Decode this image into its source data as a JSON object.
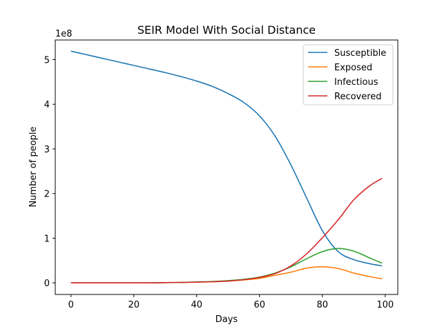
{
  "chart_data": {
    "type": "line",
    "title": "SEIR Model With Social Distance",
    "xlabel": "Days",
    "ylabel": "Number of people",
    "y_offset_label": "1e8",
    "y_scale": 100000000,
    "xlim": [
      -5,
      104
    ],
    "ylim": [
      -0.26,
      5.44
    ],
    "x_ticks": [
      0,
      20,
      40,
      60,
      80,
      100
    ],
    "y_ticks": [
      0,
      1,
      2,
      3,
      4,
      5
    ],
    "legend_position": "top-right",
    "grid": false,
    "x": [
      0,
      5,
      10,
      15,
      20,
      25,
      30,
      35,
      40,
      45,
      50,
      55,
      60,
      65,
      70,
      75,
      80,
      85,
      90,
      95,
      99
    ],
    "series": [
      {
        "name": "Susceptible",
        "color": "#1f77b4",
        "values": [
          5.19,
          5.11,
          5.03,
          4.95,
          4.87,
          4.79,
          4.71,
          4.62,
          4.52,
          4.4,
          4.24,
          4.04,
          3.74,
          3.28,
          2.64,
          1.9,
          1.17,
          0.7,
          0.52,
          0.43,
          0.38
        ]
      },
      {
        "name": "Exposed",
        "color": "#ff7f0e",
        "values": [
          0,
          0,
          0,
          0,
          0,
          0,
          0.005,
          0.01,
          0.015,
          0.025,
          0.04,
          0.065,
          0.1,
          0.17,
          0.24,
          0.33,
          0.36,
          0.32,
          0.22,
          0.14,
          0.09
        ]
      },
      {
        "name": "Infectious",
        "color": "#2ca02c",
        "values": [
          0,
          0,
          0,
          0,
          0,
          0,
          0.005,
          0.01,
          0.02,
          0.03,
          0.05,
          0.08,
          0.13,
          0.22,
          0.36,
          0.54,
          0.7,
          0.77,
          0.71,
          0.56,
          0.44
        ]
      },
      {
        "name": "Recovered",
        "color": "#d62728",
        "values": [
          0,
          0,
          0,
          0,
          0,
          0,
          0.005,
          0.01,
          0.015,
          0.025,
          0.04,
          0.07,
          0.12,
          0.21,
          0.38,
          0.65,
          1.01,
          1.41,
          1.86,
          2.17,
          2.34
        ]
      }
    ]
  }
}
